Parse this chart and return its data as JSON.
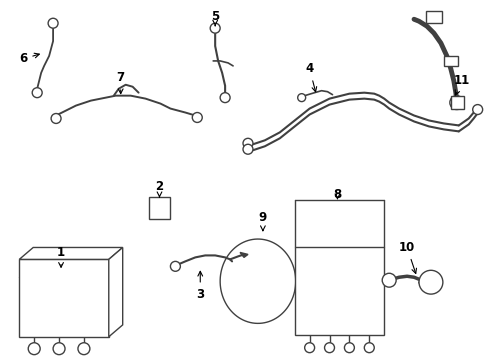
{
  "background_color": "#ffffff",
  "line_color": "#404040",
  "text_color": "#000000",
  "arrow_color": "#000000",
  "line_width": 1.0,
  "font_size": 8.5,
  "fig_w": 4.9,
  "fig_h": 3.6,
  "dpi": 100
}
